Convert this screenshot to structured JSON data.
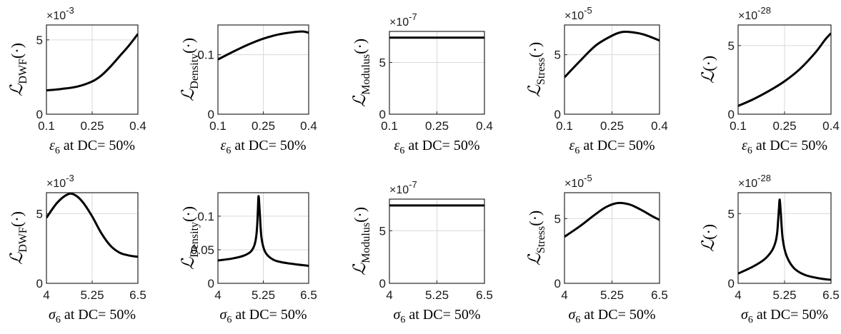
{
  "chart_data": [
    {
      "id": "p1",
      "type": "line",
      "xlabel": "ε6 at DC= 50%",
      "ylabel": "LDWF(·)",
      "ylabel_sym": "ℒ",
      "ylabel_sub": "DWF",
      "multiplier": "×10",
      "multiplier_exp": "-3",
      "xlim": [
        0.1,
        0.4
      ],
      "ylim": [
        0,
        6
      ],
      "xticks": [
        0.1,
        0.25,
        0.4
      ],
      "xtick_labels": [
        "0.1",
        "0.25",
        "0.4"
      ],
      "yticks": [
        0,
        5
      ],
      "ytick_labels": [
        "0",
        "5"
      ],
      "series": [
        {
          "x": [
            0.1,
            0.15,
            0.2,
            0.25,
            0.28,
            0.31,
            0.34,
            0.37,
            0.4
          ],
          "y": [
            1.6,
            1.7,
            1.85,
            2.2,
            2.6,
            3.2,
            3.9,
            4.6,
            5.4
          ]
        }
      ]
    },
    {
      "id": "p2",
      "type": "line",
      "xlabel": "ε6 at DC= 50%",
      "ylabel": "LDensity(·)",
      "ylabel_sym": "ℒ",
      "ylabel_sub": "Density",
      "multiplier": "",
      "multiplier_exp": "",
      "xlim": [
        0.1,
        0.4
      ],
      "ylim": [
        0,
        0.15
      ],
      "xticks": [
        0.1,
        0.25,
        0.4
      ],
      "xtick_labels": [
        "0.1",
        "0.25",
        "0.4"
      ],
      "yticks": [
        0,
        0.1
      ],
      "ytick_labels": [
        "0",
        "0.1"
      ],
      "series": [
        {
          "x": [
            0.1,
            0.15,
            0.2,
            0.25,
            0.3,
            0.35,
            0.38,
            0.4
          ],
          "y": [
            0.092,
            0.105,
            0.117,
            0.127,
            0.134,
            0.138,
            0.139,
            0.137
          ]
        }
      ]
    },
    {
      "id": "p3",
      "type": "line",
      "xlabel": "ε6 at DC= 50%",
      "ylabel": "LModulus(·)",
      "ylabel_sym": "ℒ",
      "ylabel_sub": "Modulus",
      "multiplier": "×10",
      "multiplier_exp": "-7",
      "xlim": [
        0.1,
        0.4
      ],
      "ylim": [
        0,
        8
      ],
      "xticks": [
        0.1,
        0.25,
        0.4
      ],
      "xtick_labels": [
        "0.1",
        "0.25",
        "0.4"
      ],
      "yticks": [
        0,
        5
      ],
      "ytick_labels": [
        "0",
        "5"
      ],
      "series": [
        {
          "x": [
            0.1,
            0.4
          ],
          "y": [
            7.4,
            7.4
          ]
        }
      ]
    },
    {
      "id": "p4",
      "type": "line",
      "xlabel": "ε6 at DC= 50%",
      "ylabel": "LStress(·)",
      "ylabel_sym": "ℒ",
      "ylabel_sub": "Stress",
      "multiplier": "×10",
      "multiplier_exp": "-5",
      "xlim": [
        0.1,
        0.4
      ],
      "ylim": [
        0,
        7.5
      ],
      "xticks": [
        0.1,
        0.25,
        0.4
      ],
      "xtick_labels": [
        "0.1",
        "0.25",
        "0.4"
      ],
      "yticks": [
        0,
        5
      ],
      "ytick_labels": [
        "0",
        "5"
      ],
      "series": [
        {
          "x": [
            0.1,
            0.15,
            0.2,
            0.25,
            0.28,
            0.31,
            0.35,
            0.4
          ],
          "y": [
            3.1,
            4.5,
            5.8,
            6.6,
            6.9,
            6.9,
            6.7,
            6.2
          ]
        }
      ]
    },
    {
      "id": "p5",
      "type": "line",
      "xlabel": "ε6 at DC= 50%",
      "ylabel": "L(·)",
      "ylabel_sym": "ℒ",
      "ylabel_sub": "",
      "multiplier": "×10",
      "multiplier_exp": "-28",
      "xlim": [
        0.1,
        0.4
      ],
      "ylim": [
        0,
        6.5
      ],
      "xticks": [
        0.1,
        0.25,
        0.4
      ],
      "xtick_labels": [
        "0.1",
        "0.25",
        "0.4"
      ],
      "yticks": [
        0,
        5
      ],
      "ytick_labels": [
        "0",
        "5"
      ],
      "series": [
        {
          "x": [
            0.1,
            0.15,
            0.2,
            0.25,
            0.3,
            0.35,
            0.38,
            0.4
          ],
          "y": [
            0.6,
            1.1,
            1.7,
            2.4,
            3.3,
            4.5,
            5.4,
            5.9
          ]
        }
      ]
    },
    {
      "id": "p6",
      "type": "line",
      "xlabel": "σ6 at DC= 50%",
      "ylabel": "LDWF(·)",
      "ylabel_sym": "ℒ",
      "ylabel_sub": "DWF",
      "multiplier": "×10",
      "multiplier_exp": "-3",
      "xlim": [
        4,
        6.5
      ],
      "ylim": [
        0,
        6.5
      ],
      "xticks": [
        4,
        5.25,
        6.5
      ],
      "xtick_labels": [
        "4",
        "5.25",
        "6.5"
      ],
      "yticks": [
        0,
        5
      ],
      "ytick_labels": [
        "0",
        "5"
      ],
      "series": [
        {
          "x": [
            4,
            4.3,
            4.6,
            4.8,
            5.0,
            5.25,
            5.5,
            5.75,
            6.0,
            6.25,
            6.5
          ],
          "y": [
            4.7,
            5.8,
            6.4,
            6.3,
            5.8,
            4.8,
            3.6,
            2.7,
            2.2,
            2.0,
            1.9
          ]
        }
      ]
    },
    {
      "id": "p7",
      "type": "line",
      "xlabel": "σ6 at DC= 50%",
      "ylabel": "LDensity(·)",
      "ylabel_sym": "ℒ",
      "ylabel_sub": "Density",
      "multiplier": "",
      "multiplier_exp": "",
      "xlim": [
        4,
        6.5
      ],
      "ylim": [
        0,
        0.135
      ],
      "xticks": [
        4,
        5.25,
        6.5
      ],
      "xtick_labels": [
        "4",
        "5.25",
        "6.5"
      ],
      "yticks": [
        0,
        0.05,
        0.1
      ],
      "ytick_labels": [
        "0",
        "0.05",
        "0.1"
      ],
      "series": [
        {
          "x": [
            4,
            4.4,
            4.7,
            4.9,
            5.0,
            5.05,
            5.08,
            5.1,
            5.12,
            5.15,
            5.2,
            5.3,
            5.5,
            5.8,
            6.5
          ],
          "y": [
            0.034,
            0.037,
            0.041,
            0.047,
            0.056,
            0.068,
            0.085,
            0.108,
            0.13,
            0.108,
            0.068,
            0.047,
            0.036,
            0.031,
            0.026
          ]
        }
      ]
    },
    {
      "id": "p8",
      "type": "line",
      "xlabel": "σ6 at DC= 50%",
      "ylabel": "LModulus(·)",
      "ylabel_sym": "ℒ",
      "ylabel_sub": "Modulus",
      "multiplier": "×10",
      "multiplier_exp": "-7",
      "xlim": [
        4,
        6.5
      ],
      "ylim": [
        0,
        8
      ],
      "xticks": [
        4,
        5.25,
        6.5
      ],
      "xtick_labels": [
        "4",
        "5.25",
        "6.5"
      ],
      "yticks": [
        0,
        5
      ],
      "ytick_labels": [
        "0",
        "5"
      ],
      "series": [
        {
          "x": [
            4,
            6.5
          ],
          "y": [
            7.4,
            7.4
          ]
        }
      ]
    },
    {
      "id": "p9",
      "type": "line",
      "xlabel": "σ6 at DC= 50%",
      "ylabel": "LStress(·)",
      "ylabel_sym": "ℒ",
      "ylabel_sub": "Stress",
      "multiplier": "×10",
      "multiplier_exp": "-5",
      "xlim": [
        4,
        6.5
      ],
      "ylim": [
        0,
        7
      ],
      "xticks": [
        4,
        5.25,
        6.5
      ],
      "xtick_labels": [
        "4",
        "5.25",
        "6.5"
      ],
      "yticks": [
        0,
        5
      ],
      "ytick_labels": [
        "0",
        "5"
      ],
      "series": [
        {
          "x": [
            4,
            4.4,
            4.8,
            5.1,
            5.4,
            5.7,
            6.0,
            6.3,
            6.5
          ],
          "y": [
            3.6,
            4.4,
            5.3,
            5.9,
            6.2,
            6.1,
            5.7,
            5.2,
            4.9
          ]
        }
      ]
    },
    {
      "id": "p10",
      "type": "line",
      "xlabel": "σ6 at DC= 50%",
      "ylabel": "L(·)",
      "ylabel_sym": "ℒ",
      "ylabel_sub": "",
      "multiplier": "×10",
      "multiplier_exp": "-28",
      "xlim": [
        4,
        6.5
      ],
      "ylim": [
        0,
        6.5
      ],
      "xticks": [
        4,
        5.25,
        6.5
      ],
      "xtick_labels": [
        "4",
        "5.25",
        "6.5"
      ],
      "yticks": [
        0,
        5
      ],
      "ytick_labels": [
        "0",
        "5"
      ],
      "series": [
        {
          "x": [
            4,
            4.4,
            4.7,
            4.9,
            5.0,
            5.05,
            5.08,
            5.1,
            5.12,
            5.15,
            5.2,
            5.3,
            5.5,
            5.8,
            6.2,
            6.5
          ],
          "y": [
            0.7,
            1.2,
            1.7,
            2.3,
            2.9,
            3.6,
            4.6,
            5.4,
            6.0,
            5.0,
            3.2,
            2.0,
            1.1,
            0.6,
            0.35,
            0.25
          ]
        }
      ]
    }
  ]
}
